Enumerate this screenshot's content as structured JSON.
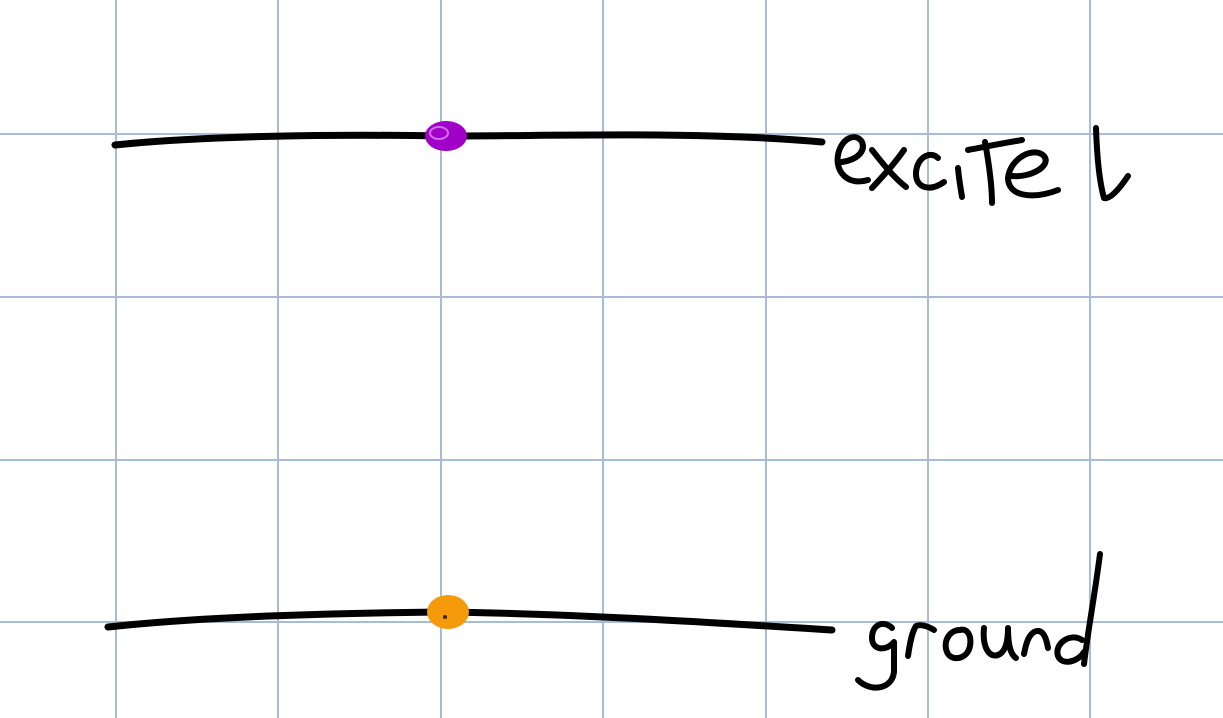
{
  "diagram": {
    "background_color": "#ffffff",
    "grid_color": "#a9bcd6",
    "ink_color": "#000000",
    "levels": [
      {
        "id": "excited",
        "label": "excitel",
        "particle_color": "#a000c8"
      },
      {
        "id": "ground",
        "label": "ground",
        "particle_color": "#f59a0a"
      }
    ]
  }
}
